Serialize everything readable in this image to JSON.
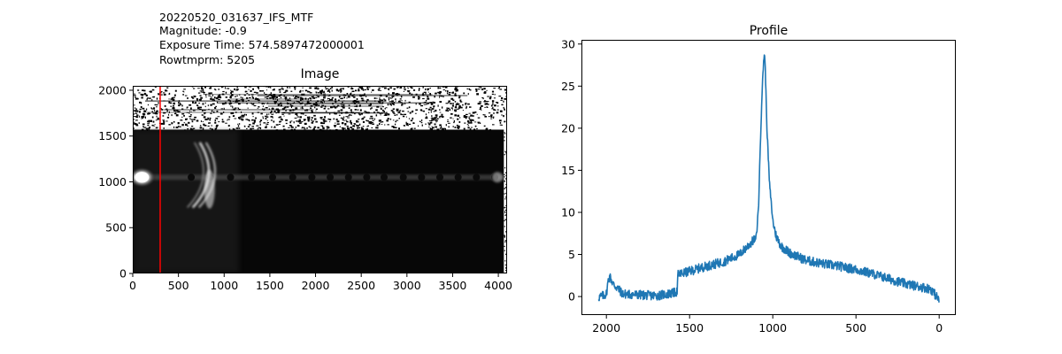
{
  "header": {
    "lines": [
      "20220520_031637_IFS_MTF",
      "Magnitude: -0.9",
      "Exposure Time: 574.5897472000001",
      "Rowtmprm: 5205"
    ]
  },
  "chart_data": [
    {
      "type": "heatmap",
      "title": "Image",
      "xlim": [
        0,
        4096
      ],
      "ylim": [
        0,
        2048
      ],
      "x_ticks": [
        0,
        500,
        1000,
        1500,
        2000,
        2500,
        3000,
        3500,
        4000
      ],
      "y_ticks": [
        0,
        500,
        1000,
        1500,
        2000
      ],
      "x_tick_labels": [
        "0",
        "500",
        "1000",
        "1500",
        "2000",
        "2500",
        "3000",
        "3500",
        "4000"
      ],
      "y_tick_labels": [
        "0",
        "500",
        "1000",
        "1500",
        "2000"
      ],
      "colormap": "gray",
      "marker_line": {
        "x": 300,
        "color": "#ff0000"
      },
      "features": {
        "dark_band_ymax": 1570,
        "noisy_band_ymin": 1570,
        "trace_y": 1050,
        "bright_spot": {
          "x": 100,
          "y": 1050
        },
        "arcs_x_center": 830,
        "spot_x_positions": [
          640,
          850,
          1070,
          1300,
          1530,
          1750,
          1960,
          2160,
          2360,
          2560,
          2750,
          2960,
          3160,
          3360,
          3560,
          3760,
          3960
        ]
      }
    },
    {
      "type": "line",
      "title": "Profile",
      "xlim": [
        2150,
        -100
      ],
      "ylim": [
        -2.2,
        30.5
      ],
      "x_ticks": [
        2000,
        1500,
        1000,
        500,
        0
      ],
      "y_ticks": [
        0,
        5,
        10,
        15,
        20,
        25,
        30
      ],
      "x_tick_labels": [
        "2000",
        "1500",
        "1000",
        "500",
        "0"
      ],
      "y_tick_labels": [
        "0",
        "5",
        "10",
        "15",
        "20",
        "25",
        "30"
      ],
      "series": [
        {
          "color": "#1f77b4",
          "x": [
            0,
            50,
            100,
            200,
            300,
            400,
            500,
            600,
            700,
            800,
            900,
            950,
            980,
            1000,
            1020,
            1035,
            1045,
            1050,
            1055,
            1065,
            1075,
            1085,
            1095,
            1100,
            1150,
            1200,
            1300,
            1400,
            1500,
            1570,
            1575,
            1600,
            1700,
            1800,
            1900,
            1960,
            1980,
            1990,
            2000,
            2020,
            2047
          ],
          "y": [
            -0.4,
            0.9,
            1.1,
            1.5,
            2.1,
            2.7,
            3.2,
            3.6,
            3.9,
            4.3,
            5.2,
            6.0,
            7.2,
            9.0,
            13.5,
            20.0,
            27.0,
            29.0,
            28.0,
            24.0,
            18.0,
            11.0,
            8.0,
            7.0,
            6.0,
            5.0,
            4.1,
            3.6,
            3.0,
            2.6,
            0.6,
            0.4,
            0.1,
            0.2,
            0.3,
            1.5,
            2.4,
            1.8,
            0.3,
            0.1,
            -0.1
          ]
        }
      ]
    }
  ]
}
